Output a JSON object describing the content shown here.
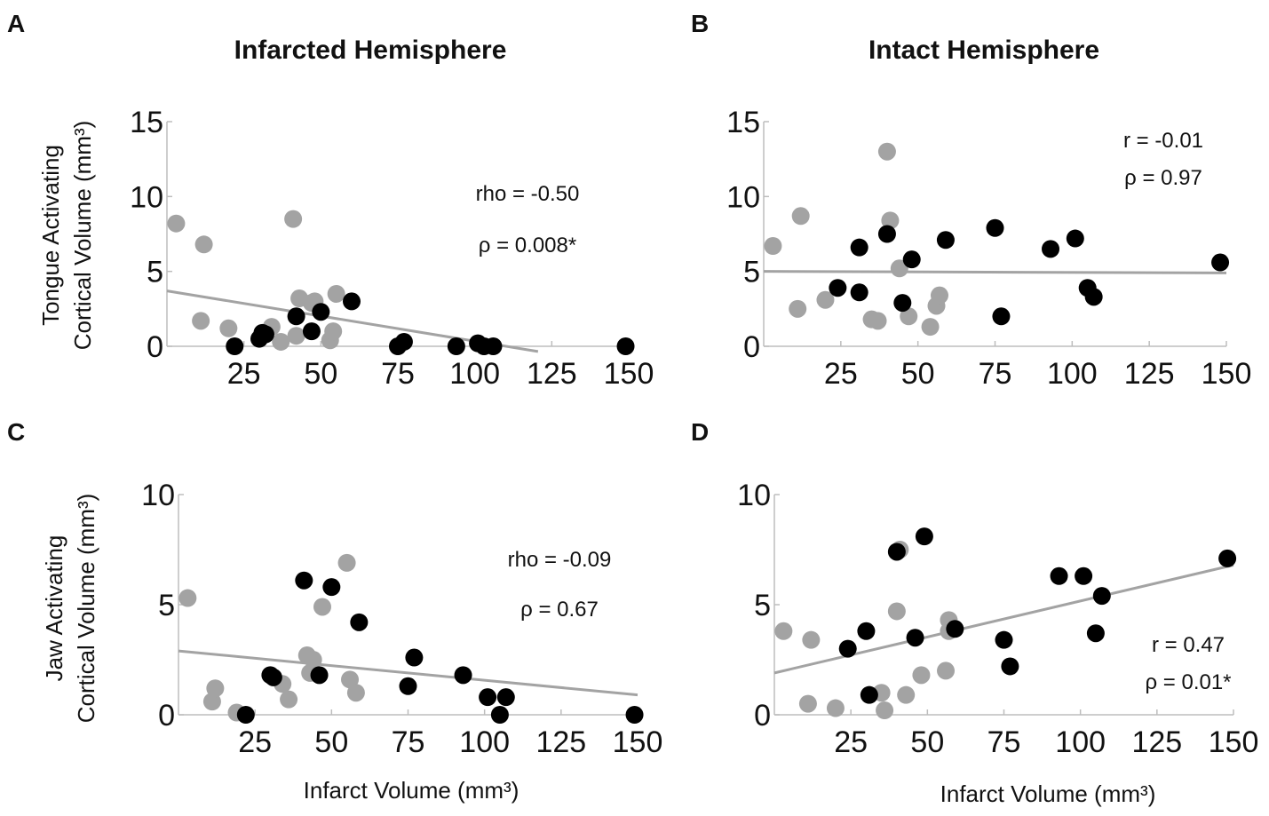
{
  "panels": {
    "A": {
      "letter": "A",
      "title": "Infarcted Hemisphere"
    },
    "B": {
      "letter": "B",
      "title": "Intact Hemisphere"
    },
    "C": {
      "letter": "C"
    },
    "D": {
      "letter": "D"
    }
  },
  "labels": {
    "tongue_y_line1": "Tongue Activating",
    "tongue_y_line2": "Cortical Volume (mm³)",
    "jaw_y_line1": "Jaw Activating",
    "jaw_y_line2": "Cortical Volume (mm³)",
    "x_label": "Infarct Volume (mm³)"
  },
  "colors": {
    "black_group": "#000000",
    "gray_group": "#a3a3a3",
    "fit_line": "#a3a3a3",
    "axis": "#bdbdbd"
  },
  "chart_data": [
    {
      "id": "A",
      "type": "scatter",
      "title": "Infarcted Hemisphere",
      "xlabel": "",
      "ylabel": "Tongue Activating Cortical Volume (mm³)",
      "xlim": [
        0,
        150
      ],
      "ylim": [
        0,
        15
      ],
      "xticks": [
        25,
        50,
        75,
        100,
        125,
        150
      ],
      "yticks": [
        0,
        5,
        10,
        15
      ],
      "stats": [
        "rho = -0.50",
        "ρ = 0.008*"
      ],
      "fit_line": {
        "x0": 0,
        "y0": 3.7,
        "x1": 125,
        "y1": -0.5
      },
      "series": [
        {
          "name": "gray",
          "color": "#a3a3a3",
          "x": [
            3,
            12,
            11,
            20,
            34,
            37,
            41,
            42,
            43,
            47,
            48,
            53,
            54,
            55
          ],
          "y": [
            8.2,
            6.8,
            1.7,
            1.2,
            1.3,
            0.3,
            8.5,
            0.7,
            3.2,
            2.9,
            3.0,
            0.4,
            1.0,
            3.5
          ]
        },
        {
          "name": "black",
          "color": "#000000",
          "x": [
            22,
            30,
            31,
            32,
            42,
            47,
            50,
            60,
            75,
            77,
            94,
            101,
            103,
            106,
            149
          ],
          "y": [
            0.0,
            0.5,
            0.9,
            0.8,
            2.0,
            1.0,
            2.3,
            3.0,
            0.0,
            0.3,
            0.0,
            0.2,
            0.0,
            0.0,
            0.0
          ]
        }
      ]
    },
    {
      "id": "B",
      "type": "scatter",
      "title": "Intact Hemisphere",
      "xlabel": "",
      "ylabel": "",
      "xlim": [
        0,
        150
      ],
      "ylim": [
        0,
        15
      ],
      "xticks": [
        25,
        50,
        75,
        100,
        125,
        150
      ],
      "yticks": [
        0,
        5,
        10,
        15
      ],
      "stats": [
        "r = -0.01",
        "ρ = 0.97"
      ],
      "fit_line": {
        "x0": 0,
        "y0": 5.0,
        "x1": 150,
        "y1": 4.9
      },
      "series": [
        {
          "name": "gray",
          "color": "#a3a3a3",
          "x": [
            3,
            12,
            20,
            35,
            37,
            40,
            41,
            44,
            47,
            54,
            56,
            57,
            11
          ],
          "y": [
            6.7,
            8.7,
            3.1,
            1.8,
            1.7,
            13.0,
            8.4,
            5.2,
            2.0,
            1.3,
            2.7,
            3.4,
            2.5
          ]
        },
        {
          "name": "black",
          "color": "#000000",
          "x": [
            24,
            31,
            31,
            40,
            45,
            48,
            59,
            75,
            77,
            93,
            101,
            105,
            107,
            148
          ],
          "y": [
            3.9,
            3.6,
            6.6,
            7.5,
            2.9,
            5.8,
            7.1,
            7.9,
            2.0,
            6.5,
            7.2,
            3.9,
            3.3,
            5.6
          ]
        }
      ]
    },
    {
      "id": "C",
      "type": "scatter",
      "title": "",
      "xlabel": "Infarct Volume (mm³)",
      "ylabel": "Jaw Activating Cortical Volume (mm³)",
      "xlim": [
        0,
        150
      ],
      "ylim": [
        0,
        10
      ],
      "xticks": [
        25,
        50,
        75,
        100,
        125,
        150
      ],
      "yticks": [
        0,
        5,
        10
      ],
      "stats": [
        "rho = -0.09",
        "ρ = 0.67"
      ],
      "fit_line": {
        "x0": 0,
        "y0": 2.9,
        "x1": 150,
        "y1": 0.9
      },
      "series": [
        {
          "name": "gray",
          "color": "#a3a3a3",
          "x": [
            3,
            11,
            12,
            19,
            34,
            36,
            42,
            43,
            44,
            47,
            55,
            56,
            58
          ],
          "y": [
            5.3,
            0.6,
            1.2,
            0.1,
            1.4,
            0.7,
            2.7,
            1.9,
            2.5,
            4.9,
            6.9,
            1.6,
            1.0
          ]
        },
        {
          "name": "black",
          "color": "#000000",
          "x": [
            22,
            30,
            31,
            41,
            46,
            50,
            59,
            75,
            77,
            93,
            101,
            105,
            107,
            149
          ],
          "y": [
            0.0,
            1.8,
            1.7,
            6.1,
            1.8,
            5.8,
            4.2,
            1.3,
            2.6,
            1.8,
            0.8,
            0.0,
            0.8,
            0.0
          ]
        }
      ]
    },
    {
      "id": "D",
      "type": "scatter",
      "title": "",
      "xlabel": "Infarct Volume (mm³)",
      "ylabel": "",
      "xlim": [
        0,
        150
      ],
      "ylim": [
        0,
        10
      ],
      "xticks": [
        25,
        50,
        75,
        100,
        125,
        150
      ],
      "yticks": [
        0,
        5,
        10
      ],
      "stats": [
        "r = 0.47",
        "ρ = 0.01*"
      ],
      "fit_line": {
        "x0": 0,
        "y0": 1.9,
        "x1": 150,
        "y1": 6.8
      },
      "series": [
        {
          "name": "gray",
          "color": "#a3a3a3",
          "x": [
            3,
            11,
            12,
            20,
            35,
            36,
            40,
            41,
            43,
            48,
            56,
            57,
            57
          ],
          "y": [
            3.8,
            0.5,
            3.4,
            0.3,
            1.0,
            0.2,
            4.7,
            7.5,
            0.9,
            1.8,
            2.0,
            4.3,
            3.8
          ]
        },
        {
          "name": "black",
          "color": "#000000",
          "x": [
            24,
            30,
            31,
            40,
            46,
            49,
            59,
            75,
            77,
            93,
            101,
            105,
            107,
            148
          ],
          "y": [
            3.0,
            3.8,
            0.9,
            7.4,
            3.5,
            8.1,
            3.9,
            3.4,
            2.2,
            6.3,
            6.3,
            3.7,
            5.4,
            7.1
          ]
        }
      ]
    }
  ]
}
